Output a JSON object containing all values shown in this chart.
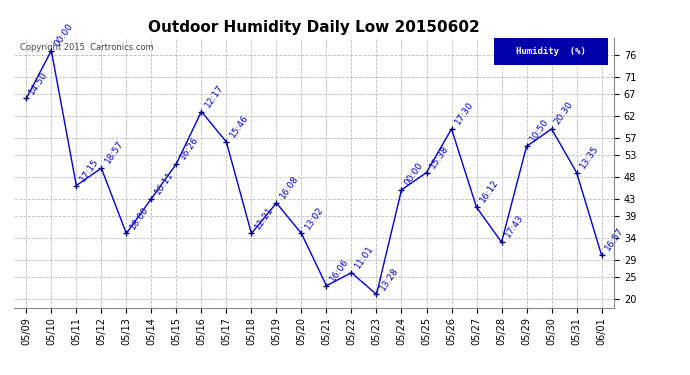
{
  "title": "Outdoor Humidity Daily Low 20150602",
  "dates": [
    "05/09",
    "05/10",
    "05/11",
    "05/12",
    "05/13",
    "05/14",
    "05/15",
    "05/16",
    "05/17",
    "05/18",
    "05/19",
    "05/20",
    "05/21",
    "05/22",
    "05/23",
    "05/24",
    "05/25",
    "05/26",
    "05/27",
    "05/28",
    "05/29",
    "05/30",
    "05/31",
    "06/01"
  ],
  "values": [
    66,
    77,
    46,
    50,
    35,
    43,
    51,
    63,
    56,
    35,
    42,
    35,
    23,
    26,
    21,
    45,
    49,
    59,
    41,
    33,
    55,
    59,
    49,
    30
  ],
  "times": [
    "14:50",
    "00:00",
    "17:15",
    "18:57",
    "18:00",
    "16:11",
    "16:26",
    "12:17",
    "15:46",
    "12:21",
    "16:08",
    "13:02",
    "16:06",
    "11:01",
    "13:28",
    "00:00",
    "15:38",
    "17:30",
    "16:12",
    "17:43",
    "10:50",
    "20:30",
    "13:35",
    "16:57"
  ],
  "line_color": "#0000CC",
  "marker_color": "#000080",
  "bg_color": "#ffffff",
  "grid_color": "#bbbbbb",
  "label_color": "#0000CC",
  "ylim": [
    18,
    80
  ],
  "yticks": [
    20,
    25,
    29,
    34,
    39,
    43,
    48,
    53,
    57,
    62,
    67,
    71,
    76
  ],
  "legend_label": "Humidity  (%)",
  "legend_bg": "#0000AA",
  "legend_fg": "#ffffff",
  "copyright_text": "Copyright 2015  Cartronics.com",
  "title_fontsize": 11,
  "label_fontsize": 6.5,
  "tick_fontsize": 7,
  "axis_label_rotation": 55
}
